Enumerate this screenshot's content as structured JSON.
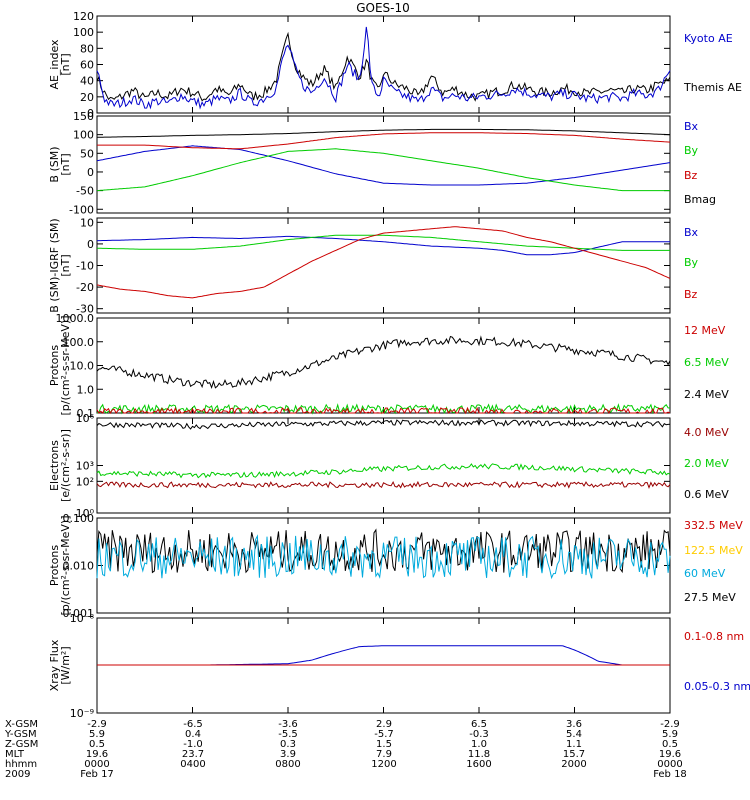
{
  "title": "GOES-10",
  "x_range": [
    0,
    24
  ],
  "chart_data": [
    {
      "type": "line",
      "ylabel": [
        "AE_index",
        "[nT]"
      ],
      "ylim": [
        0,
        120
      ],
      "yticks": [
        0,
        20,
        40,
        60,
        80,
        100,
        120
      ],
      "yticklabels": [
        "0",
        "20",
        "40",
        "60",
        "80",
        "100",
        "120"
      ],
      "legend": [
        {
          "label": "Kyoto AE",
          "color": "#0000cc"
        },
        {
          "label": "Themis AE",
          "color": "#000000"
        }
      ],
      "series": [
        {
          "name": "Themis AE",
          "color": "#000000",
          "x": [
            0,
            0.3,
            0.6,
            1,
            1.5,
            2,
            2.5,
            3,
            3.5,
            4,
            4.5,
            5,
            5.5,
            6,
            6.5,
            7,
            7.5,
            7.8,
            8,
            8.3,
            8.6,
            9,
            9.5,
            10,
            10.5,
            11,
            11.3,
            11.5,
            11.8,
            12,
            12.5,
            13,
            13.5,
            14,
            14.5,
            15,
            15.5,
            16,
            16.5,
            17,
            17.5,
            18,
            18.5,
            19,
            19.5,
            20,
            20.5,
            21,
            21.5,
            22,
            22.5,
            23,
            23.5,
            24
          ],
          "y": [
            45,
            25,
            15,
            20,
            28,
            18,
            25,
            20,
            30,
            25,
            18,
            30,
            22,
            35,
            20,
            25,
            40,
            75,
            95,
            60,
            45,
            35,
            55,
            30,
            70,
            45,
            65,
            40,
            25,
            50,
            35,
            30,
            20,
            45,
            25,
            30,
            22,
            20,
            25,
            28,
            35,
            30,
            26,
            25,
            30,
            28,
            24,
            26,
            28,
            25,
            30,
            28,
            35,
            40
          ]
        },
        {
          "name": "Kyoto AE",
          "color": "#0000cc",
          "x": [
            0,
            0.3,
            0.6,
            1,
            1.5,
            2,
            2.5,
            3,
            3.5,
            4,
            4.5,
            5,
            5.5,
            6,
            6.5,
            7,
            7.5,
            7.8,
            8,
            8.3,
            8.6,
            9,
            9.5,
            10,
            10.5,
            11,
            11.3,
            11.5,
            11.8,
            12,
            12.5,
            13,
            13.5,
            14,
            14.5,
            15,
            15.5,
            16,
            16.5,
            17,
            17.5,
            18,
            18.5,
            19,
            19.5,
            20,
            20.5,
            21,
            21.5,
            22,
            22.5,
            23,
            23.5,
            24
          ],
          "y": [
            55,
            18,
            10,
            12,
            18,
            10,
            15,
            12,
            22,
            15,
            10,
            18,
            14,
            25,
            12,
            18,
            30,
            70,
            85,
            55,
            35,
            25,
            45,
            20,
            60,
            40,
            108,
            35,
            20,
            40,
            25,
            20,
            14,
            30,
            18,
            22,
            18,
            20,
            22,
            24,
            30,
            25,
            22,
            20,
            24,
            22,
            18,
            18,
            20,
            18,
            24,
            22,
            28,
            55
          ]
        }
      ]
    },
    {
      "type": "line",
      "ylabel": [
        "B (SM)",
        "[nT]"
      ],
      "ylim": [
        -110,
        150
      ],
      "yticks": [
        -100,
        -50,
        0,
        50,
        100,
        150
      ],
      "yticklabels": [
        "-100",
        "-50",
        "0",
        "50",
        "100",
        "150"
      ],
      "legend": [
        {
          "label": "Bx",
          "color": "#0000cc"
        },
        {
          "label": "By",
          "color": "#00cc00"
        },
        {
          "label": "Bz",
          "color": "#cc0000"
        },
        {
          "label": "Bmag",
          "color": "#000000"
        }
      ],
      "series": [
        {
          "name": "Bx",
          "color": "#0000cc",
          "x": [
            0,
            2,
            4,
            6,
            8,
            10,
            12,
            14,
            16,
            18,
            20,
            22,
            24
          ],
          "y": [
            30,
            55,
            70,
            60,
            30,
            -5,
            -30,
            -35,
            -35,
            -30,
            -15,
            5,
            25
          ]
        },
        {
          "name": "By",
          "color": "#00cc00",
          "x": [
            0,
            2,
            4,
            6,
            8,
            10,
            12,
            14,
            16,
            18,
            20,
            22,
            24
          ],
          "y": [
            -50,
            -40,
            -10,
            25,
            55,
            62,
            50,
            30,
            10,
            -15,
            -35,
            -50,
            -50
          ]
        },
        {
          "name": "Bz",
          "color": "#cc0000",
          "x": [
            0,
            2,
            4,
            6,
            8,
            10,
            12,
            14,
            16,
            18,
            20,
            22,
            24
          ],
          "y": [
            72,
            72,
            65,
            62,
            75,
            92,
            102,
            105,
            105,
            103,
            98,
            88,
            80
          ]
        },
        {
          "name": "Bmag",
          "color": "#000000",
          "x": [
            0,
            2,
            4,
            6,
            8,
            10,
            12,
            14,
            16,
            18,
            20,
            22,
            24
          ],
          "y": [
            93,
            95,
            98,
            100,
            103,
            108,
            112,
            114,
            114,
            113,
            110,
            105,
            100
          ]
        }
      ]
    },
    {
      "type": "line",
      "ylabel": [
        "B (SM)-IGRF (SM)",
        "[nT]"
      ],
      "ylim": [
        -32,
        12
      ],
      "yticks": [
        -30,
        -20,
        -10,
        0,
        10
      ],
      "yticklabels": [
        "-30",
        "-20",
        "-10",
        "0",
        "10"
      ],
      "legend": [
        {
          "label": "Bx",
          "color": "#0000cc"
        },
        {
          "label": "By",
          "color": "#00cc00"
        },
        {
          "label": "Bz",
          "color": "#cc0000"
        }
      ],
      "series": [
        {
          "name": "Bx",
          "color": "#0000cc",
          "x": [
            0,
            2,
            4,
            6,
            8,
            10,
            12,
            14,
            16,
            17,
            18,
            19,
            20,
            22,
            24
          ],
          "y": [
            1.5,
            2,
            3,
            2.5,
            3.5,
            2.5,
            1,
            -1,
            -2,
            -3,
            -5,
            -5,
            -4,
            1,
            1
          ]
        },
        {
          "name": "By",
          "color": "#00cc00",
          "x": [
            0,
            2,
            4,
            6,
            8,
            10,
            12,
            14,
            16,
            18,
            20,
            22,
            24
          ],
          "y": [
            -2,
            -2.5,
            -2.5,
            -1,
            2,
            4,
            4,
            3,
            1,
            -1,
            -2,
            -3,
            -3
          ]
        },
        {
          "name": "Bz",
          "color": "#cc0000",
          "x": [
            0,
            1,
            2,
            3,
            4,
            5,
            6,
            7,
            8,
            9,
            10,
            11,
            12,
            13,
            14,
            15,
            16,
            17,
            18,
            19,
            20,
            21,
            22,
            23,
            24
          ],
          "y": [
            -19,
            -21,
            -22,
            -24,
            -25,
            -23,
            -22,
            -20,
            -14,
            -8,
            -3,
            2,
            5,
            6,
            7,
            8,
            7,
            6,
            3,
            1,
            -2,
            -5,
            -8,
            -11,
            -16
          ]
        }
      ]
    },
    {
      "type": "line",
      "scale": "log",
      "ylabel": [
        "Protons",
        "[p/(cm²-s-sr-MeV)]"
      ],
      "ylim": [
        0.1,
        1000
      ],
      "yticks": [
        0.1,
        1,
        10,
        100,
        1000
      ],
      "yticklabels": [
        "0.1",
        "1.0",
        "10.0",
        "100.0",
        "1000.0"
      ],
      "legend": [
        {
          "label": "12 MeV",
          "color": "#cc0000"
        },
        {
          "label": "6.5 MeV",
          "color": "#00cc00"
        },
        {
          "label": "2.4 MeV",
          "color": "#000000"
        }
      ],
      "series": [
        {
          "name": "2.4 MeV",
          "color": "#000000",
          "x": [
            0,
            1,
            2,
            3,
            4,
            5,
            6,
            7,
            8,
            9,
            10,
            11,
            12,
            13,
            14,
            15,
            16,
            17,
            18,
            19,
            20,
            21,
            22,
            23,
            24
          ],
          "y": [
            8,
            6,
            4,
            2.5,
            1.8,
            1.5,
            1.8,
            3,
            5,
            10,
            20,
            40,
            70,
            100,
            110,
            115,
            110,
            100,
            80,
            60,
            45,
            35,
            25,
            18,
            12
          ]
        },
        {
          "name": "6.5 MeV",
          "color": "#00cc00",
          "x": [
            0,
            2,
            4,
            6,
            8,
            10,
            12,
            14,
            16,
            18,
            20,
            22,
            24
          ],
          "y": [
            0.15,
            0.15,
            0.15,
            0.15,
            0.15,
            0.15,
            0.15,
            0.15,
            0.15,
            0.15,
            0.15,
            0.15,
            0.15
          ]
        },
        {
          "name": "12 MeV",
          "color": "#cc0000",
          "x": [
            0,
            4,
            8,
            12,
            16,
            20,
            24
          ],
          "y": [
            0.11,
            0.11,
            0.11,
            0.11,
            0.11,
            0.11,
            0.11
          ]
        }
      ]
    },
    {
      "type": "line",
      "scale": "log",
      "ylabel": [
        "Electrons",
        "[e/(cm²-s-sr)]"
      ],
      "ylim": [
        1,
        1000000
      ],
      "yticks": [
        1,
        100,
        1000,
        1000000
      ],
      "yticklabels": [
        "10⁰",
        "10²",
        "10³",
        "10⁶"
      ],
      "legend": [
        {
          "label": "4.0 MeV",
          "color": "#990000"
        },
        {
          "label": "2.0 MeV",
          "color": "#00cc00"
        },
        {
          "label": "0.6 MeV",
          "color": "#000000"
        }
      ],
      "series": [
        {
          "name": "0.6 MeV",
          "color": "#000000",
          "x": [
            0,
            4,
            8,
            12,
            16,
            20,
            24
          ],
          "y": [
            400000,
            300000,
            400000,
            500000,
            500000,
            450000,
            400000
          ]
        },
        {
          "name": "2.0 MeV",
          "color": "#00cc00",
          "x": [
            0,
            2,
            4,
            6,
            8,
            10,
            12,
            14,
            16,
            18,
            20,
            22,
            24
          ],
          "y": [
            350,
            300,
            250,
            250,
            300,
            400,
            600,
            800,
            900,
            800,
            600,
            450,
            350
          ]
        },
        {
          "name": "4.0 MeV",
          "color": "#990000",
          "x": [
            0,
            4,
            8,
            12,
            16,
            20,
            24
          ],
          "y": [
            60,
            60,
            60,
            60,
            60,
            60,
            60
          ]
        }
      ]
    },
    {
      "type": "line",
      "scale": "log",
      "ylabel": [
        "Protons",
        "[p/(cm²-s-sr-MeV)]"
      ],
      "ylim": [
        0.001,
        0.1
      ],
      "yticks": [
        0.001,
        0.01,
        0.1
      ],
      "yticklabels": [
        "0.001",
        "0.010",
        "0.100"
      ],
      "legend": [
        {
          "label": "332.5 MeV",
          "color": "#cc0000"
        },
        {
          "label": "122.5 MeV",
          "color": "#ffcc00"
        },
        {
          "label": "60 MeV",
          "color": "#00aadd"
        },
        {
          "label": "27.5 MeV",
          "color": "#000000"
        }
      ],
      "series": [
        {
          "name": "27.5 MeV",
          "color": "#000000",
          "x": [
            0,
            24
          ],
          "y": [
            0.02,
            0.02
          ]
        },
        {
          "name": "60 MeV",
          "color": "#00aadd",
          "x": [
            0,
            24
          ],
          "y": [
            0.015,
            0.015
          ]
        }
      ]
    },
    {
      "type": "line",
      "scale": "log",
      "ylabel": [
        "Xray  Flux",
        "[W/m²]"
      ],
      "ylim": [
        1e-09,
        1e-08
      ],
      "yticks": [
        1e-09,
        1e-08
      ],
      "yticklabels": [
        "10⁻⁹",
        "10⁻⁸"
      ],
      "legend": [
        {
          "label": "0.1-0.8 nm",
          "color": "#cc0000"
        },
        {
          "label": "0.05-0.3 nm",
          "color": "#0000cc"
        }
      ],
      "series": [
        {
          "name": "0.05-0.3 nm",
          "color": "#0000cc",
          "x": [
            0,
            4.5,
            4.5,
            4.6,
            4.6,
            8,
            9,
            10,
            11,
            12,
            14,
            16,
            18,
            19.5,
            20,
            21,
            22,
            24
          ],
          "y": [
            3.2e-09,
            3.2e-09,
            null,
            null,
            3.2e-09,
            3.3e-09,
            3.6e-09,
            4.3e-09,
            5e-09,
            5.1e-09,
            5.1e-09,
            5.1e-09,
            5.1e-09,
            5.1e-09,
            4.6e-09,
            3.5e-09,
            3.2e-09,
            3.2e-09
          ]
        },
        {
          "name": "0.1-0.8 nm",
          "color": "#cc0000",
          "x": [
            0,
            24
          ],
          "y": [
            3.2e-09,
            3.2e-09
          ]
        }
      ]
    }
  ],
  "x_axis": {
    "rows": [
      {
        "label": "X-GSM",
        "values": [
          "-2.9",
          "-6.5",
          "-3.6",
          "2.9",
          "6.5",
          "3.6",
          "-2.9"
        ]
      },
      {
        "label": "Y-GSM",
        "values": [
          "5.9",
          "0.4",
          "-5.5",
          "-5.7",
          "-0.3",
          "5.4",
          "5.9"
        ]
      },
      {
        "label": "Z-GSM",
        "values": [
          "0.5",
          "-1.0",
          "0.3",
          "1.5",
          "1.0",
          "1.1",
          "0.5"
        ]
      },
      {
        "label": "MLT",
        "values": [
          "19.6",
          "23.7",
          "3.9",
          "7.9",
          "11.8",
          "15.7",
          "19.6"
        ]
      },
      {
        "label": "hhmm",
        "values": [
          "0000",
          "0400",
          "0800",
          "1200",
          "1600",
          "2000",
          "0000"
        ]
      },
      {
        "label": "2009",
        "values": [
          "Feb 17",
          "",
          "",
          "",
          "",
          "",
          "Feb 18"
        ]
      }
    ]
  }
}
